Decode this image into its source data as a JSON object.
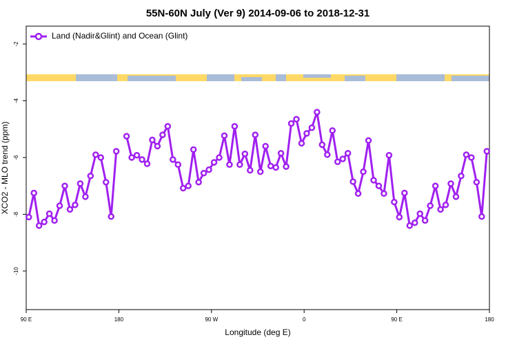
{
  "chart_data": {
    "type": "line",
    "title": "55N-60N July (Ver 9)   2014-09-06 to 2018-12-31",
    "xlabel": "Longitude (deg E)",
    "ylabel": "XCO2 - MLO trend (ppm)",
    "x": [
      92.5,
      97.5,
      102.5,
      107.5,
      112.5,
      117.5,
      122.5,
      127.5,
      132.5,
      137.5,
      142.5,
      147.5,
      152.5,
      157.5,
      162.5,
      167.5,
      172.5,
      177.5,
      182.5,
      187.5,
      192.5,
      197.5,
      202.5,
      207.5,
      212.5,
      217.5,
      222.5,
      227.5,
      232.5,
      237.5,
      242.5,
      247.5,
      252.5,
      257.5,
      262.5,
      267.5,
      272.5,
      277.5,
      282.5,
      287.5,
      292.5,
      297.5,
      302.5,
      307.5,
      312.5,
      317.5,
      322.5,
      327.5,
      332.5,
      337.5,
      342.5,
      347.5,
      352.5,
      357.5,
      362.5,
      367.5,
      372.5,
      377.5,
      382.5,
      387.5,
      392.5,
      397.5,
      402.5,
      407.5,
      412.5,
      417.5,
      422.5,
      427.5,
      432.5,
      437.5,
      442.5,
      447.5,
      452.5,
      457.5,
      462.5,
      467.5,
      472.5,
      477.5,
      482.5,
      487.5,
      492.5,
      497.5,
      502.5,
      507.5,
      512.5,
      517.5,
      522.5,
      527.5,
      532.5,
      537.5
    ],
    "series": [
      {
        "name": "Land (Nadir&Glint) and Ocean (Glint)",
        "color": "#a020f0",
        "values": [
          -8.1,
          -7.25,
          -8.4,
          -8.27,
          -7.98,
          -8.22,
          -7.7,
          -7.0,
          -7.83,
          -7.67,
          -6.92,
          -7.38,
          -6.65,
          -5.9,
          -6.0,
          -6.87,
          -8.08,
          -5.78,
          null,
          -5.25,
          -6.0,
          -5.92,
          -6.07,
          -6.22,
          -5.38,
          -5.6,
          -5.2,
          -4.9,
          -6.07,
          -6.25,
          -7.08,
          -7.0,
          -5.72,
          -6.87,
          -6.55,
          -6.43,
          -6.17,
          -6.0,
          -5.23,
          -6.25,
          -4.9,
          -6.25,
          -5.87,
          -6.45,
          -5.2,
          -6.5,
          -5.6,
          -6.3,
          -6.35,
          -5.85,
          -6.32,
          -4.8,
          -4.65,
          -5.5,
          -5.15,
          -4.95,
          -4.4,
          -5.55,
          -5.9,
          -5.05,
          -6.15,
          -6.05,
          -5.85,
          -6.85,
          -7.27,
          -6.5,
          -5.4,
          -6.8,
          -7.0,
          -7.27,
          -5.92,
          -7.57,
          -8.1,
          -7.25,
          -8.4,
          -8.3,
          -7.98,
          -8.22,
          -7.7,
          -7.0,
          -7.83,
          -7.67,
          -6.92,
          -7.38,
          -6.65,
          -5.9,
          -6.0,
          -6.87,
          -8.08,
          -5.78
        ]
      }
    ],
    "xlim": [
      90,
      540
    ],
    "xticks": [
      {
        "value": 90,
        "label": "90 E"
      },
      {
        "value": 180,
        "label": "180"
      },
      {
        "value": 270,
        "label": "90 W"
      },
      {
        "value": 360,
        "label": "0"
      },
      {
        "value": 450,
        "label": "90 E"
      },
      {
        "value": 540,
        "label": "180"
      }
    ],
    "ylim": [
      -11.36,
      -1.37
    ],
    "yticks": [
      -2,
      -4,
      -6,
      -8,
      -10
    ],
    "legend": "topleft"
  }
}
